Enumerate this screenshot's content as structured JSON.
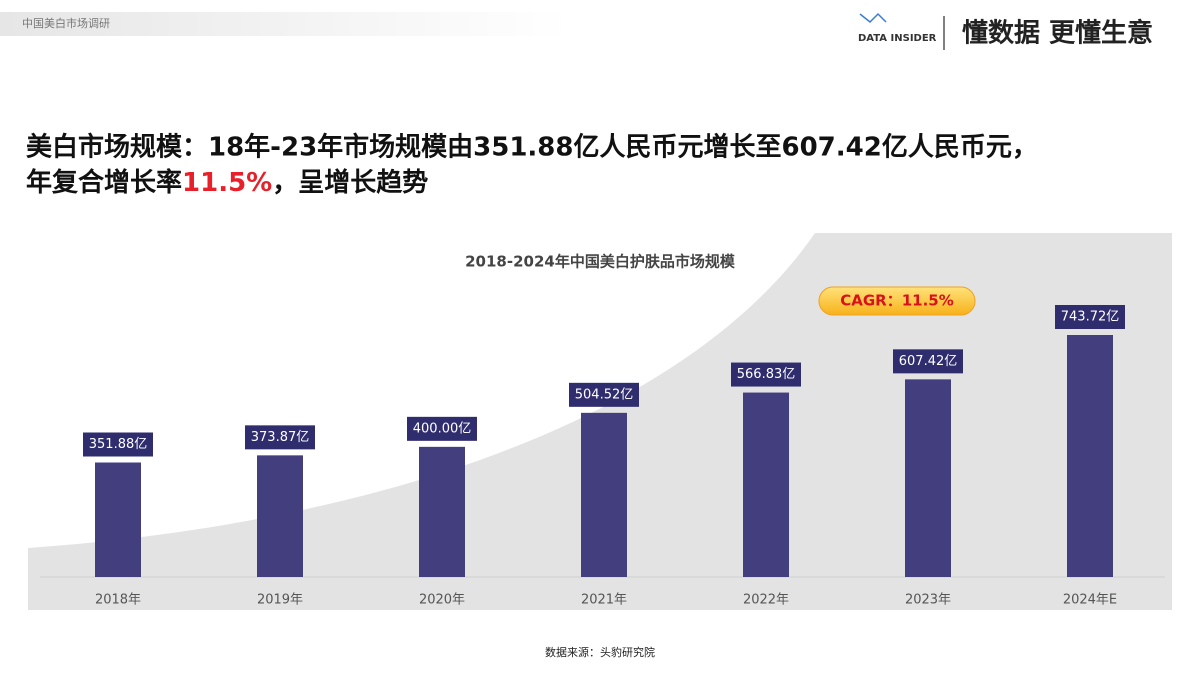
{
  "header": {
    "section": "中国美白市场调研",
    "logo": "DATA INSIDER",
    "slogan": "懂数据 更懂生意"
  },
  "headline": {
    "line1": "美白市场规模：18年-23年市场规模由351.88亿人民币元增长至607.42亿人民币元，",
    "line2_start": "年复合增长率",
    "line2_highlight": "11.5%",
    "line2_end": "，呈增长趋势"
  },
  "chart_data": {
    "type": "bar",
    "title": "2018-2024年中国美白护肤品市场规模",
    "categories": [
      "2018年",
      "2019年",
      "2020年",
      "2021年",
      "2022年",
      "2023年",
      "2024年E"
    ],
    "values": [
      351.88,
      373.87,
      400.0,
      504.52,
      566.83,
      607.42,
      743.72
    ],
    "value_labels": [
      "351.88亿",
      "373.87亿",
      "400.00亿",
      "504.52亿",
      "566.83亿",
      "607.42亿",
      "743.72亿"
    ],
    "color": "#433f7f",
    "annotation": "CAGR：11.5%"
  },
  "source": "数据来源：头豹研究院"
}
